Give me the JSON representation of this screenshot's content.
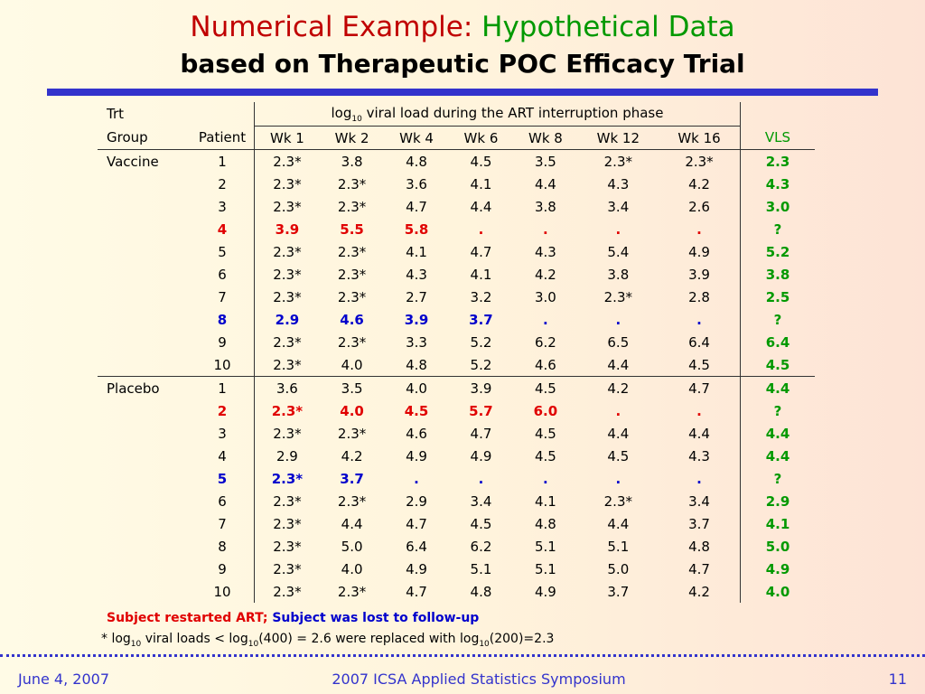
{
  "title": {
    "prefix": "Numerical Example:",
    "highlight": "Hypothetical Data",
    "subtitle": "based on Therapeutic POC Efficacy Trial"
  },
  "table": {
    "header_trt": "Trt",
    "header_group": "Group",
    "header_patient": "Patient",
    "header_span_log": "log",
    "header_span_sub": "10",
    "header_span_rest": " viral load during the ART interruption phase",
    "weeks": [
      "Wk 1",
      "Wk 2",
      "Wk 4",
      "Wk 6",
      "Wk 8",
      "Wk 12",
      "Wk 16"
    ],
    "header_vls": "VLS",
    "rows": [
      {
        "group": "Vaccine",
        "patient": "1",
        "values": [
          "2.3*",
          "3.8",
          "4.8",
          "4.5",
          "3.5",
          "2.3*",
          "2.3*"
        ],
        "vls": "2.3",
        "status": ""
      },
      {
        "group": "",
        "patient": "2",
        "values": [
          "2.3*",
          "2.3*",
          "3.6",
          "4.1",
          "4.4",
          "4.3",
          "4.2"
        ],
        "vls": "4.3",
        "status": ""
      },
      {
        "group": "",
        "patient": "3",
        "values": [
          "2.3*",
          "2.3*",
          "4.7",
          "4.4",
          "3.8",
          "3.4",
          "2.6"
        ],
        "vls": "3.0",
        "status": ""
      },
      {
        "group": "",
        "patient": "4",
        "values": [
          "3.9",
          "5.5",
          "5.8",
          ".",
          ".",
          ".",
          "."
        ],
        "vls": "?",
        "status": "restarted"
      },
      {
        "group": "",
        "patient": "5",
        "values": [
          "2.3*",
          "2.3*",
          "4.1",
          "4.7",
          "4.3",
          "5.4",
          "4.9"
        ],
        "vls": "5.2",
        "status": ""
      },
      {
        "group": "",
        "patient": "6",
        "values": [
          "2.3*",
          "2.3*",
          "4.3",
          "4.1",
          "4.2",
          "3.8",
          "3.9"
        ],
        "vls": "3.8",
        "status": ""
      },
      {
        "group": "",
        "patient": "7",
        "values": [
          "2.3*",
          "2.3*",
          "2.7",
          "3.2",
          "3.0",
          "2.3*",
          "2.8"
        ],
        "vls": "2.5",
        "status": ""
      },
      {
        "group": "",
        "patient": "8",
        "values": [
          "2.9",
          "4.6",
          "3.9",
          "3.7",
          ".",
          ".",
          "."
        ],
        "vls": "?",
        "status": "lost"
      },
      {
        "group": "",
        "patient": "9",
        "values": [
          "2.3*",
          "2.3*",
          "3.3",
          "5.2",
          "6.2",
          "6.5",
          "6.4"
        ],
        "vls": "6.4",
        "status": ""
      },
      {
        "group": "",
        "patient": "10",
        "values": [
          "2.3*",
          "4.0",
          "4.8",
          "5.2",
          "4.6",
          "4.4",
          "4.5"
        ],
        "vls": "4.5",
        "status": ""
      },
      {
        "group": "Placebo",
        "patient": "1",
        "values": [
          "3.6",
          "3.5",
          "4.0",
          "3.9",
          "4.5",
          "4.2",
          "4.7"
        ],
        "vls": "4.4",
        "status": ""
      },
      {
        "group": "",
        "patient": "2",
        "values": [
          "2.3*",
          "4.0",
          "4.5",
          "5.7",
          "6.0",
          ".",
          "."
        ],
        "vls": "?",
        "status": "restarted"
      },
      {
        "group": "",
        "patient": "3",
        "values": [
          "2.3*",
          "2.3*",
          "4.6",
          "4.7",
          "4.5",
          "4.4",
          "4.4"
        ],
        "vls": "4.4",
        "status": ""
      },
      {
        "group": "",
        "patient": "4",
        "values": [
          "2.9",
          "4.2",
          "4.9",
          "4.9",
          "4.5",
          "4.5",
          "4.3"
        ],
        "vls": "4.4",
        "status": ""
      },
      {
        "group": "",
        "patient": "5",
        "values": [
          "2.3*",
          "3.7",
          ".",
          ".",
          ".",
          ".",
          "."
        ],
        "vls": "?",
        "status": "lost"
      },
      {
        "group": "",
        "patient": "6",
        "values": [
          "2.3*",
          "2.3*",
          "2.9",
          "3.4",
          "4.1",
          "2.3*",
          "3.4"
        ],
        "vls": "2.9",
        "status": ""
      },
      {
        "group": "",
        "patient": "7",
        "values": [
          "2.3*",
          "4.4",
          "4.7",
          "4.5",
          "4.8",
          "4.4",
          "3.7"
        ],
        "vls": "4.1",
        "status": ""
      },
      {
        "group": "",
        "patient": "8",
        "values": [
          "2.3*",
          "5.0",
          "6.4",
          "6.2",
          "5.1",
          "5.1",
          "4.8"
        ],
        "vls": "5.0",
        "status": ""
      },
      {
        "group": "",
        "patient": "9",
        "values": [
          "2.3*",
          "4.0",
          "4.9",
          "5.1",
          "5.1",
          "5.0",
          "4.7"
        ],
        "vls": "4.9",
        "status": ""
      },
      {
        "group": "",
        "patient": "10",
        "values": [
          "2.3*",
          "2.3*",
          "4.7",
          "4.8",
          "4.9",
          "3.7",
          "4.2"
        ],
        "vls": "4.0",
        "status": ""
      }
    ]
  },
  "legend": {
    "restarted": "Subject restarted ART;",
    "lost": "Subject was lost to follow-up"
  },
  "footnote": {
    "p1": "* log",
    "s1": "10",
    "p2": " viral loads < log",
    "s2": "10",
    "p3": "(400) = 2.6 were replaced with log",
    "s3": "10",
    "p4": "(200)=2.3"
  },
  "footer": {
    "date": "June 4, 2007",
    "event": "2007 ICSA Applied Statistics Symposium",
    "page": "11"
  },
  "colors": {
    "restarted": "#e00000",
    "lost": "#0000cc",
    "vls": "#009900"
  }
}
